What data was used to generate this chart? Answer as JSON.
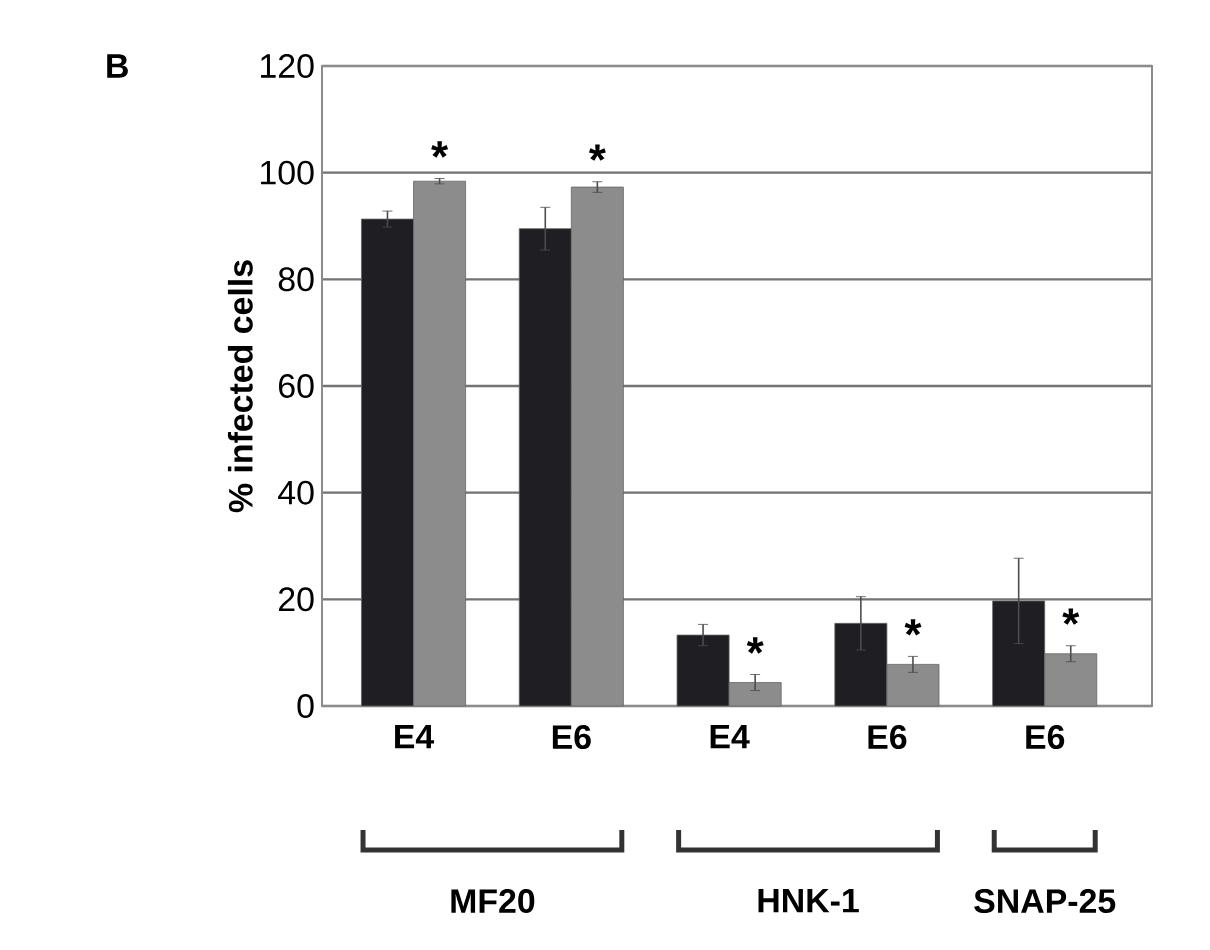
{
  "chart_data": {
    "type": "bar",
    "ylabel": "% infected cells",
    "categories": [
      "E4",
      "E6",
      "E4",
      "E6",
      "E6"
    ],
    "series": [
      {
        "color": "#1f1f23",
        "values": [
          91.3,
          89.5,
          13.3,
          15.5,
          19.7
        ],
        "errors": [
          1.5,
          4,
          2,
          5,
          8
        ]
      },
      {
        "color": "#8c8c8c",
        "values": [
          98.4,
          97.3,
          4.4,
          7.8,
          9.8
        ],
        "errors": [
          0.5,
          1,
          1.5,
          1.5,
          1.5
        ]
      }
    ],
    "ylim": [
      0,
      120
    ],
    "yticks": [
      0,
      20,
      40,
      60,
      80,
      100,
      120
    ],
    "grid": "y",
    "annotations": [
      "B",
      "*",
      "*",
      "*",
      "*",
      "*",
      "MF20",
      "HNK-1",
      "SNAP-25"
    ]
  }
}
